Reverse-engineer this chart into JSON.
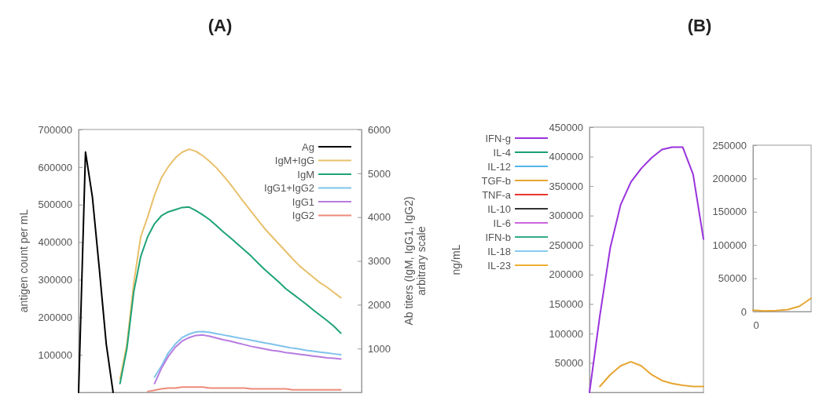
{
  "chart_data": [
    {
      "type": "line",
      "title": "(A)",
      "ylabel": "antigen count per mL",
      "y2label": "Ab titers (IgM, IgG1, IgG2)\narbitrary scale",
      "legend": "top right",
      "categories": [
        null,
        null,
        null,
        null,
        null,
        null,
        null,
        null,
        null,
        null,
        null,
        null,
        null,
        null,
        null,
        null,
        null,
        null,
        null,
        null,
        null,
        null,
        null,
        null,
        null,
        null,
        null,
        null,
        null,
        null,
        null,
        null,
        null,
        null,
        null,
        null,
        null,
        null,
        null,
        null,
        null,
        null
      ],
      "ylim": [
        0,
        700000
      ],
      "yticks": [
        100000,
        200000,
        300000,
        400000,
        500000,
        600000,
        700000
      ],
      "y2lim": [
        0,
        6000
      ],
      "y2ticks": [
        1000,
        2000,
        3000,
        4000,
        5000,
        6000
      ],
      "series": [
        {
          "name": "Ag",
          "color": "#000000",
          "values": [
            0,
            640000,
            520000,
            330000,
            130000,
            0,
            null,
            null,
            null,
            null,
            null,
            null,
            null,
            null,
            null,
            null,
            null,
            null,
            null,
            null,
            null,
            null,
            null,
            null,
            null,
            null,
            null,
            null,
            null,
            null,
            null,
            null,
            null,
            null,
            null,
            null,
            null,
            null,
            null,
            null,
            null,
            null
          ]
        },
        {
          "name": "IgM+IgG",
          "color": "#e8c06a",
          "axis": "y2",
          "values": [
            null,
            null,
            null,
            null,
            null,
            null,
            300,
            1100,
            2500,
            3550,
            4000,
            4500,
            4900,
            5150,
            5350,
            5480,
            5550,
            5500,
            5400,
            5270,
            5120,
            4940,
            4750,
            4540,
            4330,
            4130,
            3930,
            3730,
            3560,
            3390,
            3220,
            3050,
            2890,
            2760,
            2630,
            2500,
            2400,
            2280,
            2160,
            null,
            null,
            null
          ]
        },
        {
          "name": "IgM",
          "color": "#1fa37a",
          "axis": "y2",
          "values": [
            null,
            null,
            null,
            null,
            null,
            null,
            200,
            1000,
            2300,
            3100,
            3550,
            3850,
            4030,
            4120,
            4170,
            4220,
            4230,
            4150,
            4050,
            3940,
            3800,
            3660,
            3530,
            3390,
            3250,
            3110,
            2950,
            2800,
            2660,
            2520,
            2370,
            2250,
            2130,
            2010,
            1880,
            1760,
            1640,
            1510,
            1350,
            null,
            null,
            null
          ]
        },
        {
          "name": "IgG1+IgG2",
          "color": "#7ec3ec",
          "axis": "y2",
          "values": [
            null,
            null,
            null,
            null,
            null,
            null,
            null,
            null,
            null,
            null,
            null,
            350,
            600,
            900,
            1100,
            1250,
            1330,
            1380,
            1390,
            1370,
            1340,
            1310,
            1280,
            1250,
            1220,
            1190,
            1160,
            1130,
            1100,
            1070,
            1040,
            1010,
            990,
            960,
            940,
            920,
            900,
            880,
            860,
            null,
            null,
            null
          ]
        },
        {
          "name": "IgG1",
          "color": "#b77be0",
          "axis": "y2",
          "values": [
            null,
            null,
            null,
            null,
            null,
            null,
            null,
            null,
            null,
            null,
            null,
            200,
            550,
            820,
            1030,
            1170,
            1250,
            1300,
            1310,
            1280,
            1240,
            1200,
            1170,
            1130,
            1090,
            1050,
            1020,
            990,
            960,
            940,
            910,
            890,
            870,
            850,
            830,
            810,
            790,
            780,
            760,
            null,
            null,
            null
          ]
        },
        {
          "name": "IgG2",
          "color": "#ee8a7a",
          "axis": "y2",
          "values": [
            null,
            null,
            null,
            null,
            null,
            null,
            null,
            null,
            null,
            null,
            20,
            50,
            80,
            100,
            100,
            120,
            120,
            120,
            120,
            100,
            100,
            100,
            100,
            100,
            100,
            80,
            80,
            80,
            80,
            80,
            80,
            60,
            60,
            60,
            60,
            60,
            60,
            60,
            60,
            null,
            null,
            null
          ]
        }
      ]
    },
    {
      "type": "line",
      "title": "(B)",
      "ylabel": "ng/mL",
      "legend": "left",
      "categories": [
        null,
        null,
        null,
        null,
        null,
        null,
        null,
        null,
        null,
        null,
        null,
        null
      ],
      "ylim": [
        0,
        450000
      ],
      "yticks": [
        50000,
        100000,
        150000,
        200000,
        250000,
        300000,
        350000,
        400000,
        450000
      ],
      "series": [
        {
          "name": "IFN-g",
          "color": "#9933dd",
          "values": [
            0,
            130000,
            245000,
            318000,
            357000,
            380000,
            398000,
            412000,
            416000,
            416000,
            370000,
            260000
          ]
        },
        {
          "name": "IL-4",
          "color": "#1b9e77",
          "values": [
            null,
            null,
            null,
            null,
            null,
            null,
            null,
            null,
            null,
            null,
            null,
            null
          ]
        },
        {
          "name": "IL-12",
          "color": "#56b4e9",
          "values": [
            null,
            null,
            null,
            null,
            null,
            null,
            null,
            null,
            null,
            null,
            null,
            null
          ]
        },
        {
          "name": "TGF-b",
          "color": "#e6a532",
          "values": [
            null,
            10000,
            30000,
            45000,
            52000,
            45000,
            30000,
            20000,
            15000,
            12000,
            10000,
            10000
          ]
        },
        {
          "name": "TNF-a",
          "color": "#e8372c",
          "values": [
            null,
            null,
            null,
            null,
            null,
            null,
            null,
            null,
            null,
            null,
            null,
            null
          ]
        },
        {
          "name": "IL-10",
          "color": "#333333",
          "values": [
            null,
            null,
            null,
            null,
            null,
            null,
            null,
            null,
            null,
            null,
            null,
            null
          ]
        },
        {
          "name": "IL-6",
          "color": "#cc66dd",
          "values": [
            null,
            null,
            null,
            null,
            null,
            null,
            null,
            null,
            null,
            null,
            null,
            null
          ]
        },
        {
          "name": "IFN-b",
          "color": "#33aa88",
          "values": [
            null,
            null,
            null,
            null,
            null,
            null,
            null,
            null,
            null,
            null,
            null,
            null
          ]
        },
        {
          "name": "IL-18",
          "color": "#88ccee",
          "values": [
            null,
            null,
            null,
            null,
            null,
            null,
            null,
            null,
            null,
            null,
            null,
            null
          ]
        },
        {
          "name": "IL-23",
          "color": "#f0b030",
          "values": [
            null,
            null,
            null,
            null,
            null,
            null,
            null,
            null,
            null,
            null,
            null,
            null
          ]
        }
      ]
    },
    {
      "type": "line",
      "categories": [
        null,
        null,
        null,
        null,
        null,
        null
      ],
      "annotations": [
        "0"
      ],
      "ylim": [
        0,
        250000
      ],
      "yticks": [
        0,
        50000,
        100000,
        150000,
        200000,
        250000
      ],
      "series": [
        {
          "color": "#e6a532",
          "values": [
            2000,
            1000,
            1500,
            3000,
            8000,
            20000
          ]
        }
      ]
    }
  ]
}
